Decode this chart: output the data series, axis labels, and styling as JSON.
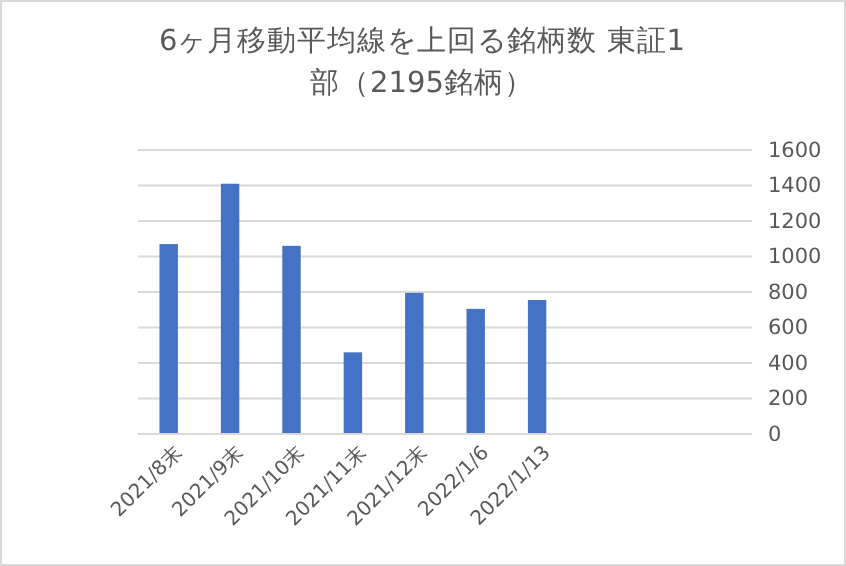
{
  "chart_data": {
    "type": "bar",
    "title": "6ヶ月移動平均線を上回る銘柄数 東証1部（2195銘柄）",
    "categories": [
      "2021/8末",
      "2021/9末",
      "2021/10末",
      "2021/11末",
      "2021/12末",
      "2022/1/6",
      "2022/1/13",
      null,
      null,
      null
    ],
    "values": [
      1070,
      1410,
      1060,
      460,
      795,
      705,
      755,
      null,
      null,
      null
    ],
    "color": "#4472c4",
    "ylim": [
      0,
      1600
    ],
    "yticks": [
      0,
      200,
      400,
      600,
      800,
      1000,
      1200,
      1400,
      1600
    ],
    "grid": "y"
  }
}
